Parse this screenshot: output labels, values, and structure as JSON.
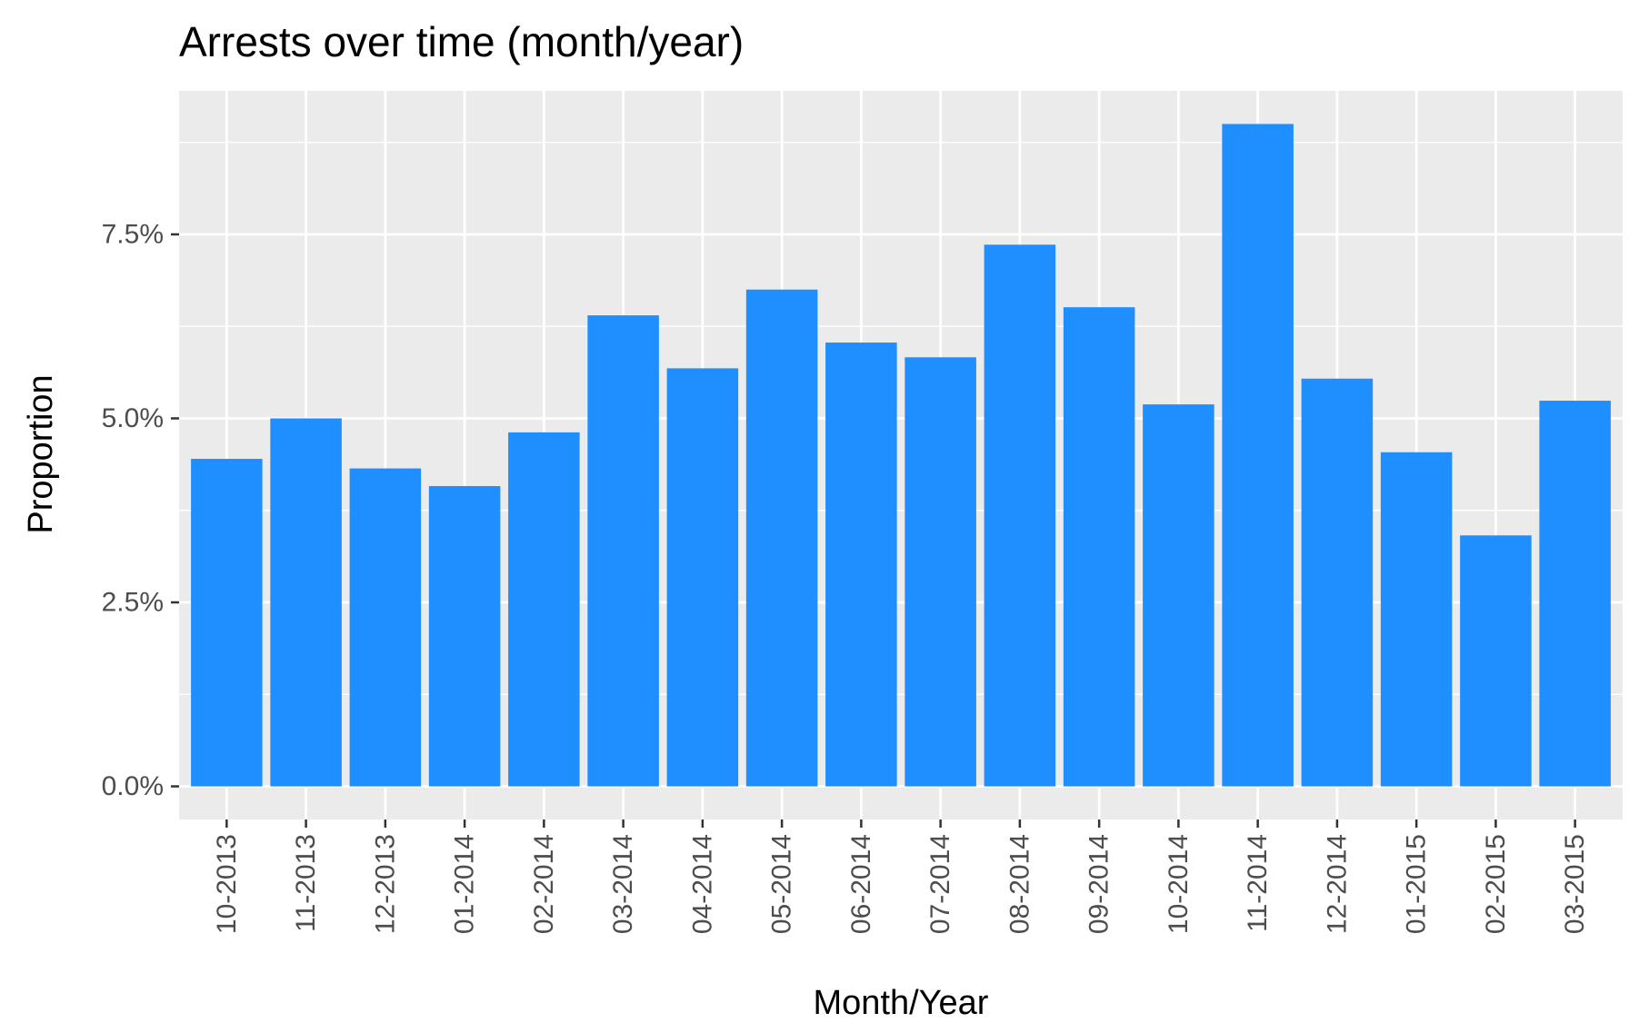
{
  "chart_data": {
    "type": "bar",
    "title": "Arrests over time (month/year)",
    "xlabel": "Month/Year",
    "ylabel": "Proportion",
    "categories": [
      "10-2013",
      "11-2013",
      "12-2013",
      "01-2014",
      "02-2014",
      "03-2014",
      "04-2014",
      "05-2014",
      "06-2014",
      "07-2014",
      "08-2014",
      "09-2014",
      "10-2014",
      "11-2014",
      "12-2014",
      "01-2015",
      "02-2015",
      "03-2015"
    ],
    "values": [
      4.45,
      5.0,
      4.32,
      4.08,
      4.81,
      6.4,
      5.68,
      6.75,
      6.03,
      5.83,
      7.36,
      6.51,
      5.19,
      9.0,
      5.54,
      4.54,
      3.41,
      5.24
    ],
    "value_unit": "%",
    "ylim": [
      -0.45,
      9.45
    ],
    "yticks": [
      0,
      2.5,
      5.0,
      7.5
    ],
    "ytick_labels": [
      "0.0%",
      "2.5%",
      "5.0%",
      "7.5%"
    ],
    "grid": true,
    "bar_color": "#1f8fff",
    "panel_color": "#ebebeb",
    "grid_color": "#ffffff"
  }
}
